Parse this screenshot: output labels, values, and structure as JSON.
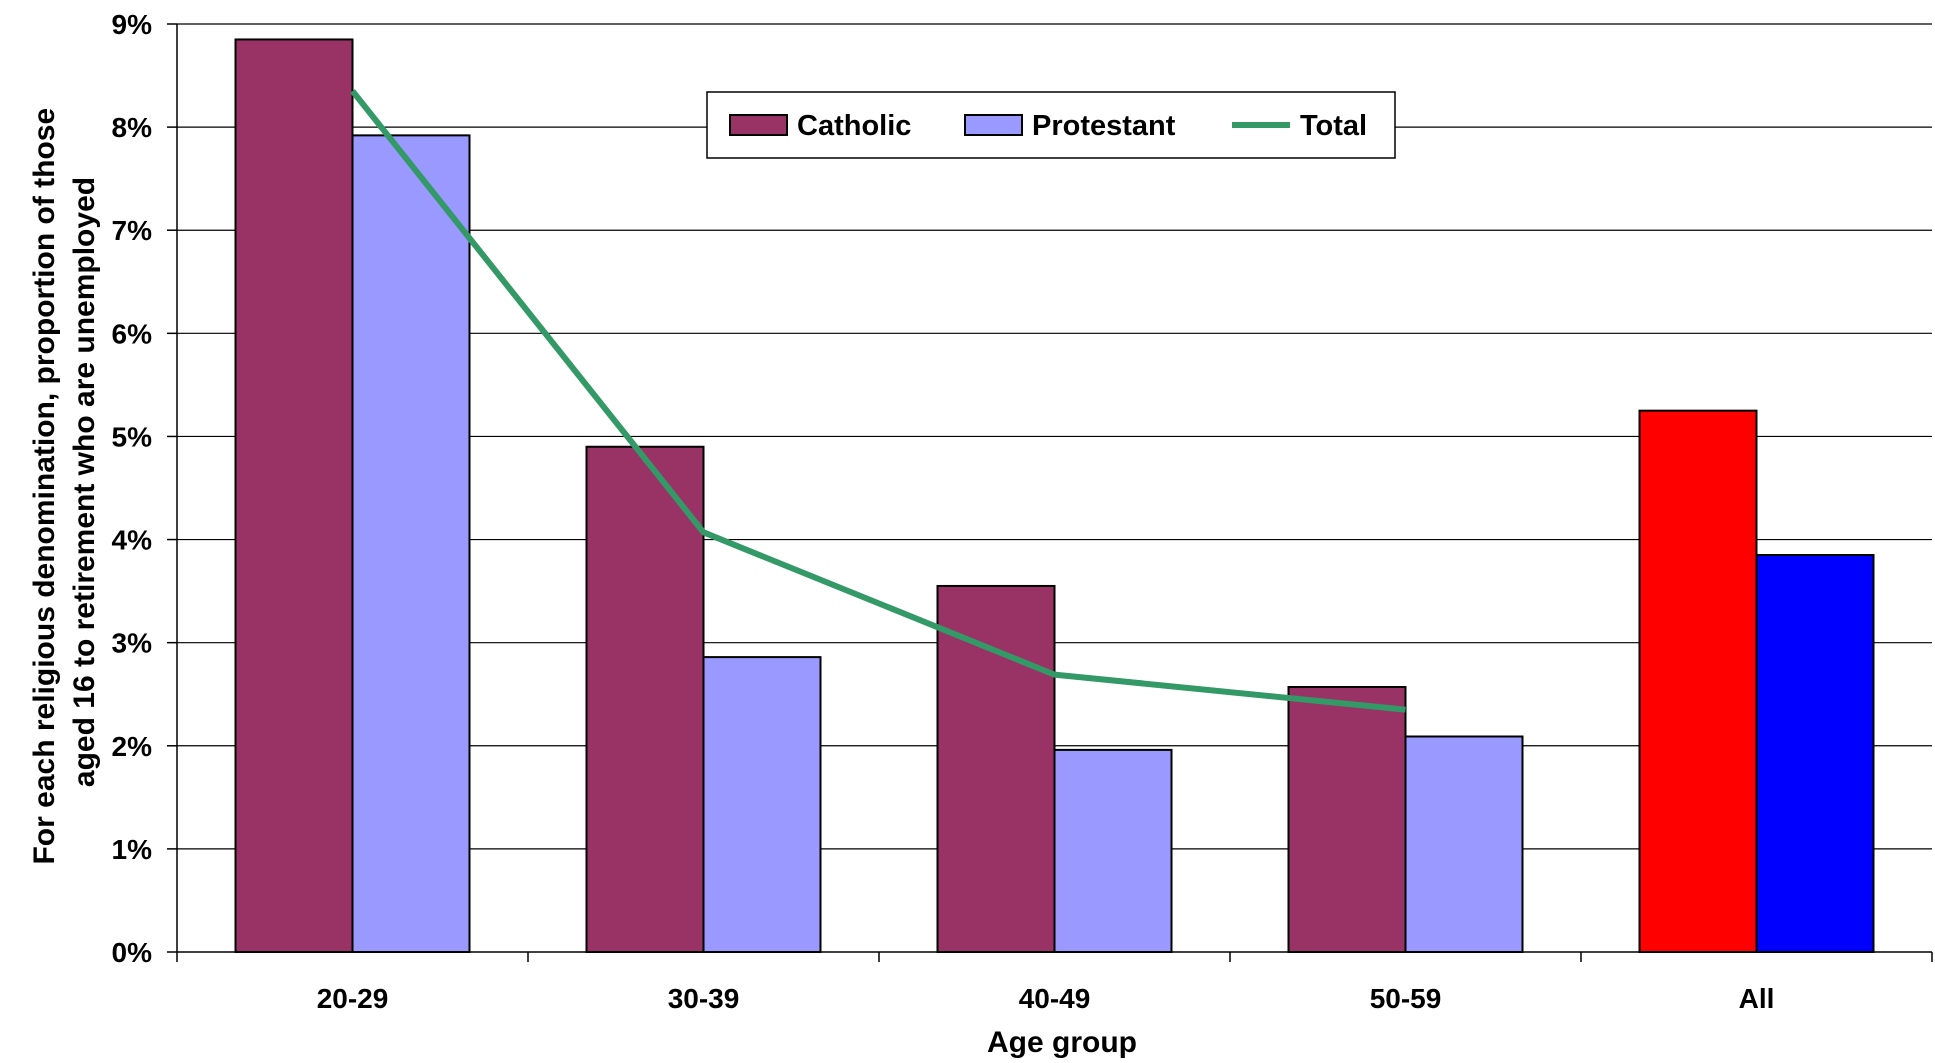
{
  "chart_data": {
    "type": "bar",
    "title": "",
    "xlabel": "Age group",
    "ylabel_lines": [
      "For each religious denomination, proportion of those",
      "aged 16 to retirement who are unemployed"
    ],
    "categories": [
      "20-29",
      "30-39",
      "40-49",
      "50-59",
      "All"
    ],
    "ylim": [
      0,
      9
    ],
    "yticks": [
      0,
      1,
      2,
      3,
      4,
      5,
      6,
      7,
      8,
      9
    ],
    "ytick_suffix": "%",
    "grid": true,
    "legend_position": "top-center",
    "series": [
      {
        "name": "Catholic",
        "kind": "bar",
        "color": "#993366",
        "values": [
          8.85,
          4.9,
          3.55,
          2.57,
          5.25
        ],
        "point_colors": [
          null,
          null,
          null,
          null,
          "#ff0000"
        ]
      },
      {
        "name": "Protestant",
        "kind": "bar",
        "color": "#9999ff",
        "values": [
          7.92,
          2.86,
          1.96,
          2.09,
          3.85
        ],
        "point_colors": [
          null,
          null,
          null,
          null,
          "#0000ff"
        ]
      },
      {
        "name": "Total",
        "kind": "line",
        "color": "#339966",
        "values": [
          8.35,
          4.07,
          2.69,
          2.35,
          null
        ]
      }
    ]
  }
}
